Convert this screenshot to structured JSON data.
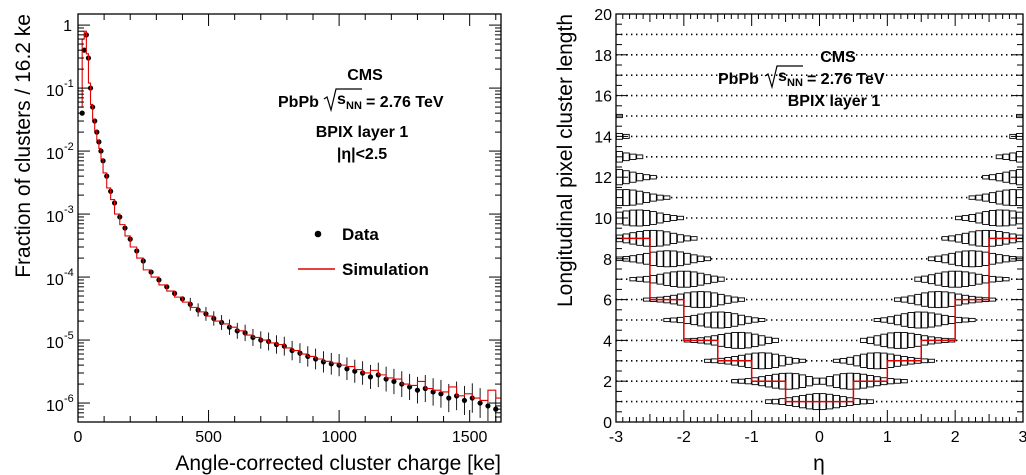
{
  "chart_data": [
    {
      "type": "scatter",
      "xlabel": "Angle-corrected cluster charge [ke]",
      "ylabel": "Fraction of clusters / 16.2 ke",
      "xlim": [
        0,
        1620
      ],
      "ylim": [
        5e-07,
        1.5
      ],
      "yscale": "log",
      "x_ticks": [
        "0",
        "500",
        "1000",
        "1500"
      ],
      "y_ticks": [
        "1",
        "10",
        "10",
        "10",
        "10",
        "10",
        "10"
      ],
      "y_tick_exponents": [
        "",
        "-1",
        "-2",
        "-3",
        "-4",
        "-5",
        "-6"
      ],
      "annotation": {
        "experiment": "CMS",
        "system": "PbPb",
        "energy_root": "s",
        "energy_sub": "NN",
        "energy_value": "= 2.76 TeV",
        "detector": "BPIX layer 1",
        "cut": "|η|<2.5"
      },
      "legend": {
        "position": "right",
        "data_label": "Data",
        "sim_label": "Simulation"
      },
      "series": [
        {
          "name": "Data",
          "style": "points",
          "color": "#000000",
          "x": [
            16,
            24,
            32,
            40,
            48,
            56,
            64,
            72,
            80,
            88,
            96,
            110,
            125,
            140,
            160,
            180,
            200,
            225,
            250,
            280,
            310,
            340,
            370,
            400,
            430,
            460,
            490,
            520,
            550,
            580,
            610,
            640,
            670,
            700,
            730,
            760,
            790,
            820,
            850,
            880,
            910,
            940,
            970,
            1000,
            1030,
            1060,
            1090,
            1120,
            1150,
            1180,
            1210,
            1240,
            1270,
            1300,
            1330,
            1360,
            1390,
            1420,
            1450,
            1480,
            1510,
            1540,
            1570,
            1600
          ],
          "y": [
            0.04,
            0.4,
            0.7,
            0.3,
            0.1,
            0.05,
            0.03,
            0.02,
            0.014,
            0.01,
            0.007,
            0.004,
            0.0023,
            0.0015,
            0.0009,
            0.0006,
            0.0004,
            0.00026,
            0.00018,
            0.00012,
            9e-05,
            7e-05,
            5.5e-05,
            4.5e-05,
            3.7e-05,
            3e-05,
            2.6e-05,
            2.2e-05,
            1.9e-05,
            1.6e-05,
            1.4e-05,
            1.3e-05,
            1.1e-05,
            1e-05,
            9.5e-06,
            8.5e-06,
            8e-06,
            6.8e-06,
            6.2e-06,
            5.5e-06,
            5e-06,
            4.5e-06,
            4.2e-06,
            4e-06,
            3.5e-06,
            3.2e-06,
            3e-06,
            2.6e-06,
            2.8e-06,
            2.4e-06,
            2.2e-06,
            2e-06,
            1.8e-06,
            1.6e-06,
            1.7e-06,
            1.5e-06,
            1.4e-06,
            1.2e-06,
            1.3e-06,
            1.1e-06,
            1.2e-06,
            1e-06,
            9e-07,
            8e-07
          ]
        },
        {
          "name": "Simulation",
          "style": "step",
          "color": "#e00000",
          "x": [
            0,
            16,
            24,
            32,
            40,
            48,
            56,
            64,
            72,
            80,
            88,
            96,
            110,
            125,
            140,
            160,
            180,
            200,
            225,
            250,
            280,
            310,
            340,
            370,
            400,
            430,
            460,
            490,
            520,
            550,
            580,
            610,
            640,
            670,
            700,
            730,
            760,
            790,
            820,
            850,
            880,
            910,
            940,
            970,
            1000,
            1030,
            1060,
            1090,
            1120,
            1150,
            1180,
            1210,
            1240,
            1270,
            1300,
            1330,
            1360,
            1390,
            1420,
            1450,
            1480,
            1510,
            1540,
            1570,
            1600,
            1620
          ],
          "y": [
            0.05,
            0.6,
            0.8,
            0.35,
            0.12,
            0.055,
            0.032,
            0.021,
            0.015,
            0.011,
            0.0075,
            0.0045,
            0.0026,
            0.0017,
            0.001,
            0.00068,
            0.00045,
            0.0003,
            0.0002,
            0.00013,
            0.0001,
            7.5e-05,
            6e-05,
            4.8e-05,
            4e-05,
            3.3e-05,
            2.8e-05,
            2.4e-05,
            2e-05,
            1.8e-05,
            1.6e-05,
            1.4e-05,
            1.2e-05,
            1.1e-05,
            1e-05,
            9e-06,
            8.5e-06,
            7.5e-06,
            6.8e-06,
            6e-06,
            5.5e-06,
            5e-06,
            4.6e-06,
            4.3e-06,
            4e-06,
            3.8e-06,
            3.4e-06,
            3e-06,
            3.3e-06,
            2.8e-06,
            2.5e-06,
            2.4e-06,
            2e-06,
            1.9e-06,
            2.2e-06,
            1.7e-06,
            1.6e-06,
            1.5e-06,
            1.8e-06,
            1.3e-06,
            1.4e-06,
            1.2e-06,
            1.1e-06,
            1.6e-06,
            1.2e-06,
            1.2e-06
          ]
        }
      ]
    },
    {
      "type": "box",
      "xlabel": "η",
      "ylabel": "Longitudinal pixel cluster length",
      "xlim": [
        -3,
        3
      ],
      "ylim": [
        0,
        20
      ],
      "x_ticks": [
        "-3",
        "-2",
        "-1",
        "0",
        "1",
        "2",
        "3"
      ],
      "y_ticks": [
        "0",
        "2",
        "4",
        "6",
        "8",
        "10",
        "12",
        "14",
        "16",
        "18",
        "20"
      ],
      "annotation": {
        "experiment": "CMS",
        "system": "PbPb",
        "energy_root": "s",
        "energy_sub": "NN",
        "energy_value": "= 2.76 TeV",
        "detector": "BPIX layer 1"
      },
      "expected_length_curve": {
        "color": "#e00000",
        "eta": [
          -3,
          -2.5,
          -2.5,
          -2,
          -2,
          -1.5,
          -1.5,
          -1,
          -1,
          -0.5,
          -0.5,
          0.5,
          0.5,
          1,
          1,
          1.5,
          1.5,
          2,
          2,
          2.5,
          2.5,
          3
        ],
        "length": [
          9,
          9,
          6,
          6,
          4,
          4,
          3,
          3,
          2,
          2,
          1,
          1,
          2,
          2,
          3,
          3,
          4,
          4,
          6,
          6,
          9,
          9
        ]
      }
    }
  ]
}
